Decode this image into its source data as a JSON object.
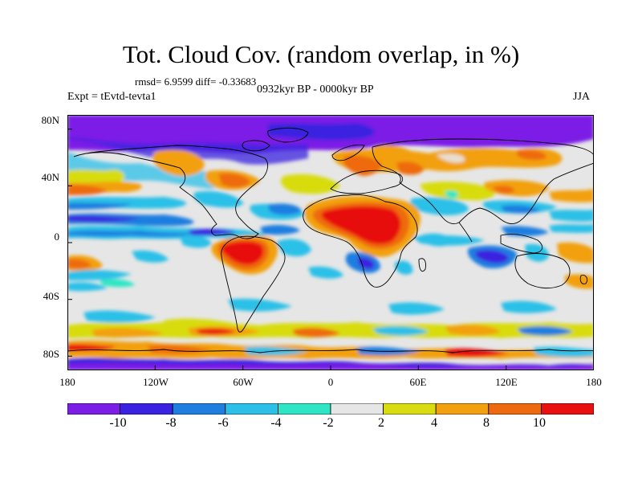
{
  "title": "Tot. Cloud Cov. (random overlap, in %)",
  "stats": "rmsd= 6.9599 diff= -0.33683",
  "period": "0932kyr BP - 0000kyr BP",
  "experiment": "Expt = tEvtd-tevta1",
  "season": "JJA",
  "map": {
    "projection": "cylindrical equidistant",
    "lon_range": [
      -180,
      180
    ],
    "lat_range": [
      -90,
      90
    ],
    "lat_ticks": [
      "80N",
      "40N",
      "0",
      "40S",
      "80S"
    ],
    "lon_ticks": [
      "180",
      "120W",
      "60W",
      "0",
      "60E",
      "120E",
      "180"
    ]
  },
  "colorbar": {
    "labels": [
      "-10",
      "-8",
      "-6",
      "-4",
      "-2",
      "2",
      "4",
      "8",
      "10"
    ],
    "colors": [
      "#7b1ee6",
      "#3a22e0",
      "#1f7ee0",
      "#2cc0e8",
      "#2ee6c4",
      "#e6e6e6",
      "#d8dc10",
      "#f2a010",
      "#ee6a10",
      "#e81010"
    ]
  }
}
